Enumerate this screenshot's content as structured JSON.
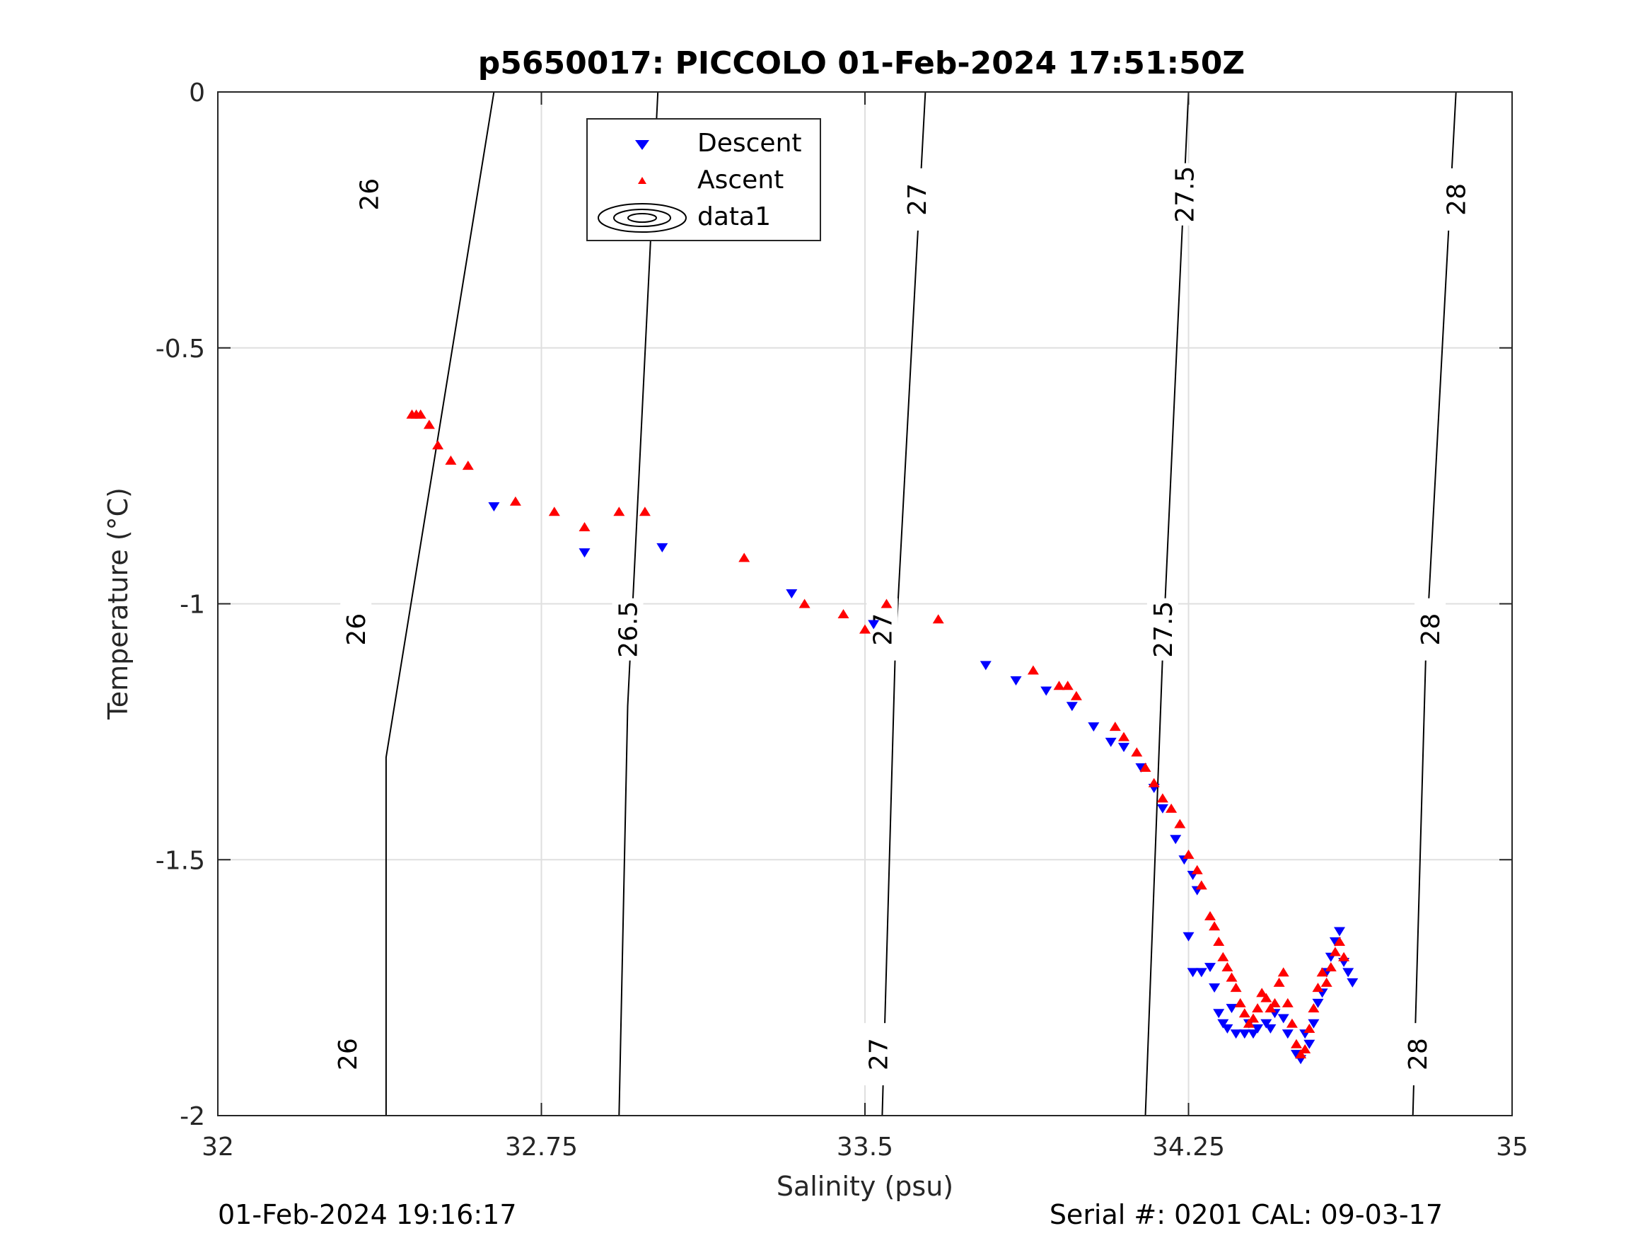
{
  "chart_data": {
    "type": "scatter",
    "title": "p5650017: PICCOLO 01-Feb-2024 17:51:50Z",
    "xlabel": "Salinity (psu)",
    "ylabel": "Temperature (°C)",
    "xlim": [
      32,
      35
    ],
    "ylim": [
      -2,
      0
    ],
    "xticks": [
      32,
      32.75,
      33.5,
      34.25,
      35
    ],
    "xtick_labels": [
      "32",
      "32.75",
      "33.5",
      "34.25",
      "35"
    ],
    "yticks": [
      0,
      -0.5,
      -1,
      -1.5,
      -2
    ],
    "ytick_labels": [
      "0",
      "-0.5",
      "-1",
      "-1.5",
      "-2"
    ],
    "grid": true,
    "legend": {
      "position": "top-center",
      "entries": [
        "Descent",
        "Ascent",
        "data1"
      ]
    },
    "contours": [
      {
        "level_label": "26",
        "line": [
          [
            32.39,
            -2
          ],
          [
            32.39,
            -1.3
          ],
          [
            32.64,
            0
          ]
        ],
        "labels": [
          {
            "x": 32.32,
            "y": -1.05
          },
          {
            "x": 32.35,
            "y": -0.2
          },
          {
            "x": 32.3,
            "y": -1.88
          }
        ]
      },
      {
        "level_label": "26.5",
        "line": [
          [
            32.93,
            -2
          ],
          [
            32.95,
            -1.2
          ],
          [
            33.02,
            0
          ]
        ],
        "labels": [
          {
            "x": 32.95,
            "y": -1.05
          },
          {
            "x": 33.0,
            "y": -0.19
          }
        ]
      },
      {
        "level_label": "27",
        "line": [
          [
            33.54,
            -2
          ],
          [
            33.57,
            -1.1
          ],
          [
            33.64,
            0
          ]
        ],
        "labels": [
          {
            "x": 33.54,
            "y": -1.05
          },
          {
            "x": 33.62,
            "y": -0.21
          },
          {
            "x": 33.53,
            "y": -1.88
          }
        ]
      },
      {
        "level_label": "27.5",
        "line": [
          [
            34.15,
            -2
          ],
          [
            34.19,
            -1.1
          ],
          [
            34.25,
            0
          ]
        ],
        "labels": [
          {
            "x": 34.19,
            "y": -1.05
          },
          {
            "x": 34.24,
            "y": -0.2
          }
        ]
      },
      {
        "level_label": "28",
        "line": [
          [
            34.77,
            -2
          ],
          [
            34.8,
            -1.1
          ],
          [
            34.87,
            0
          ]
        ],
        "labels": [
          {
            "x": 34.81,
            "y": -1.05
          },
          {
            "x": 34.87,
            "y": -0.21
          },
          {
            "x": 34.78,
            "y": -1.88
          }
        ]
      }
    ],
    "series": [
      {
        "name": "Descent",
        "color": "#0000ff",
        "marker": "triangle-down",
        "points": [
          [
            32.64,
            -0.81
          ],
          [
            32.85,
            -0.9
          ],
          [
            33.03,
            -0.89
          ],
          [
            33.33,
            -0.98
          ],
          [
            33.52,
            -1.04
          ],
          [
            33.78,
            -1.12
          ],
          [
            33.85,
            -1.15
          ],
          [
            33.92,
            -1.17
          ],
          [
            33.98,
            -1.2
          ],
          [
            34.03,
            -1.24
          ],
          [
            34.07,
            -1.27
          ],
          [
            34.1,
            -1.28
          ],
          [
            34.14,
            -1.32
          ],
          [
            34.17,
            -1.36
          ],
          [
            34.19,
            -1.4
          ],
          [
            34.22,
            -1.46
          ],
          [
            34.24,
            -1.5
          ],
          [
            34.26,
            -1.53
          ],
          [
            34.27,
            -1.56
          ],
          [
            34.25,
            -1.65
          ],
          [
            34.26,
            -1.72
          ],
          [
            34.28,
            -1.72
          ],
          [
            34.3,
            -1.71
          ],
          [
            34.31,
            -1.75
          ],
          [
            34.32,
            -1.8
          ],
          [
            34.33,
            -1.82
          ],
          [
            34.34,
            -1.83
          ],
          [
            34.36,
            -1.84
          ],
          [
            34.38,
            -1.84
          ],
          [
            34.39,
            -1.82
          ],
          [
            34.4,
            -1.84
          ],
          [
            34.41,
            -1.83
          ],
          [
            34.43,
            -1.82
          ],
          [
            34.45,
            -1.8
          ],
          [
            34.47,
            -1.81
          ],
          [
            34.48,
            -1.84
          ],
          [
            34.5,
            -1.88
          ],
          [
            34.51,
            -1.89
          ],
          [
            34.53,
            -1.86
          ],
          [
            34.54,
            -1.82
          ],
          [
            34.55,
            -1.78
          ],
          [
            34.56,
            -1.76
          ],
          [
            34.57,
            -1.72
          ],
          [
            34.58,
            -1.69
          ],
          [
            34.59,
            -1.66
          ],
          [
            34.6,
            -1.64
          ],
          [
            34.61,
            -1.7
          ],
          [
            34.62,
            -1.72
          ],
          [
            34.63,
            -1.74
          ],
          [
            34.35,
            -1.79
          ],
          [
            34.44,
            -1.83
          ],
          [
            34.52,
            -1.84
          ]
        ]
      },
      {
        "name": "Ascent",
        "color": "#ff0000",
        "marker": "triangle-up",
        "points": [
          [
            32.45,
            -0.63
          ],
          [
            32.46,
            -0.63
          ],
          [
            32.47,
            -0.63
          ],
          [
            32.49,
            -0.65
          ],
          [
            32.51,
            -0.69
          ],
          [
            32.54,
            -0.72
          ],
          [
            32.58,
            -0.73
          ],
          [
            32.69,
            -0.8
          ],
          [
            32.78,
            -0.82
          ],
          [
            32.85,
            -0.85
          ],
          [
            32.93,
            -0.82
          ],
          [
            32.99,
            -0.82
          ],
          [
            33.22,
            -0.91
          ],
          [
            33.36,
            -1.0
          ],
          [
            33.45,
            -1.02
          ],
          [
            33.5,
            -1.05
          ],
          [
            33.55,
            -1.0
          ],
          [
            33.67,
            -1.03
          ],
          [
            33.89,
            -1.13
          ],
          [
            33.95,
            -1.16
          ],
          [
            33.97,
            -1.16
          ],
          [
            33.99,
            -1.18
          ],
          [
            34.08,
            -1.24
          ],
          [
            34.1,
            -1.26
          ],
          [
            34.13,
            -1.29
          ],
          [
            34.15,
            -1.32
          ],
          [
            34.17,
            -1.35
          ],
          [
            34.19,
            -1.38
          ],
          [
            34.21,
            -1.4
          ],
          [
            34.23,
            -1.43
          ],
          [
            34.25,
            -1.49
          ],
          [
            34.27,
            -1.52
          ],
          [
            34.28,
            -1.55
          ],
          [
            34.3,
            -1.61
          ],
          [
            34.31,
            -1.63
          ],
          [
            34.32,
            -1.66
          ],
          [
            34.33,
            -1.69
          ],
          [
            34.34,
            -1.71
          ],
          [
            34.35,
            -1.73
          ],
          [
            34.36,
            -1.75
          ],
          [
            34.37,
            -1.78
          ],
          [
            34.38,
            -1.8
          ],
          [
            34.39,
            -1.82
          ],
          [
            34.4,
            -1.81
          ],
          [
            34.41,
            -1.79
          ],
          [
            34.42,
            -1.76
          ],
          [
            34.43,
            -1.77
          ],
          [
            34.44,
            -1.79
          ],
          [
            34.45,
            -1.78
          ],
          [
            34.46,
            -1.74
          ],
          [
            34.47,
            -1.72
          ],
          [
            34.48,
            -1.78
          ],
          [
            34.49,
            -1.82
          ],
          [
            34.5,
            -1.86
          ],
          [
            34.51,
            -1.88
          ],
          [
            34.52,
            -1.87
          ],
          [
            34.53,
            -1.83
          ],
          [
            34.54,
            -1.79
          ],
          [
            34.55,
            -1.75
          ],
          [
            34.56,
            -1.72
          ],
          [
            34.57,
            -1.74
          ],
          [
            34.58,
            -1.71
          ],
          [
            34.59,
            -1.68
          ],
          [
            34.6,
            -1.66
          ],
          [
            34.61,
            -1.69
          ]
        ]
      }
    ]
  },
  "footer": {
    "left": "01-Feb-2024 19:16:17",
    "right": "Serial #: 0201  CAL: 09-03-17"
  },
  "colors": {
    "descent": "#0000ff",
    "ascent": "#ff0000",
    "grid": "#dfdfdf",
    "axis": "#262626"
  }
}
